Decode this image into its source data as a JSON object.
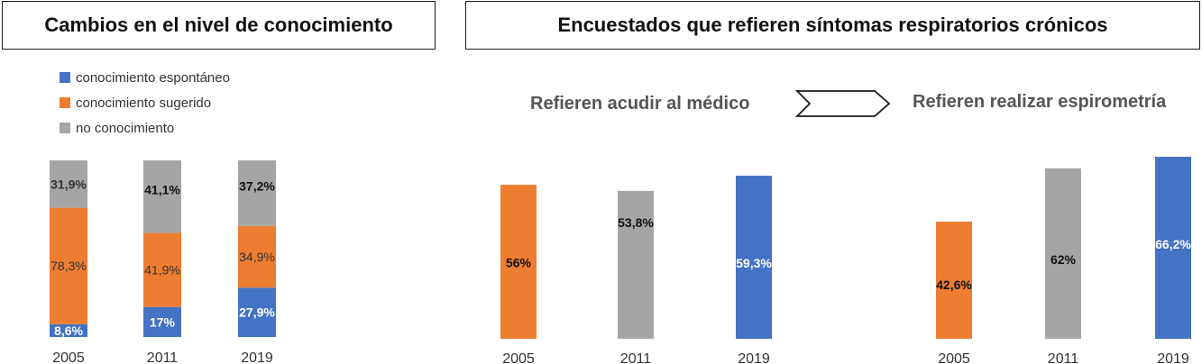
{
  "left_panel": {
    "title": "Cambios en el nivel de conocimiento",
    "legend": [
      {
        "label": "conocimiento espontáneo",
        "color": "#4472C4"
      },
      {
        "label": "conocimiento sugerido",
        "color": "#ED7D31"
      },
      {
        "label": "no conocimiento",
        "color": "#A5A5A5"
      }
    ]
  },
  "right_panel": {
    "title": "Encuestados que refieren síntomas respiratorios crónicos",
    "sub_left": "Refieren acudir al médico",
    "sub_right": "Refieren realizar espirometría",
    "arrow_icon": "chevron-arrow-icon"
  },
  "chart_data": [
    {
      "type": "bar",
      "stacked": true,
      "categories": [
        "2005",
        "2011",
        "2019"
      ],
      "series": [
        {
          "name": "conocimiento espontáneo",
          "color": "#4472C4",
          "values": [
            8.6,
            17,
            27.9
          ],
          "labels": [
            "8,6%",
            "17%",
            "27,9%"
          ]
        },
        {
          "name": "conocimiento sugerido",
          "color": "#ED7D31",
          "values": [
            78.3,
            41.9,
            34.9
          ],
          "labels": [
            "78,3%",
            "41,9%",
            "34,9%"
          ]
        },
        {
          "name": "no conocimiento",
          "color": "#A5A5A5",
          "values": [
            31.9,
            41.1,
            37.2
          ],
          "labels": [
            "31,9%",
            "41,1%",
            "37,2%"
          ]
        }
      ],
      "title": "Cambios en el nivel de conocimiento"
    },
    {
      "type": "bar",
      "categories": [
        "2005",
        "2011",
        "2019"
      ],
      "values": [
        56,
        53.8,
        59.3
      ],
      "labels": [
        "56%",
        "53,8%",
        "59,3%"
      ],
      "colors": [
        "#ED7D31",
        "#A5A5A5",
        "#4472C4"
      ],
      "title": "Refieren acudir al médico"
    },
    {
      "type": "bar",
      "categories": [
        "2005",
        "2011",
        "2019"
      ],
      "values": [
        42.6,
        62,
        66.2
      ],
      "labels": [
        "42,6%",
        "62%",
        "66,2%"
      ],
      "colors": [
        "#ED7D31",
        "#A5A5A5",
        "#4472C4"
      ],
      "title": "Refieren realizar espirometría"
    }
  ]
}
